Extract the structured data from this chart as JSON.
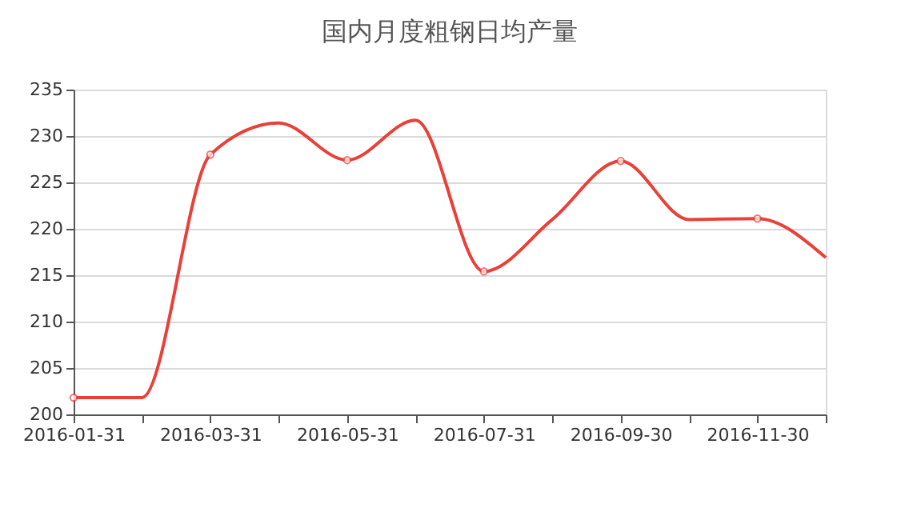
{
  "chart_data": {
    "type": "line",
    "title": "国内月度粗钢日均产量",
    "categories": [
      "2016-01-31",
      null,
      "2016-03-31",
      null,
      "2016-05-31",
      null,
      "2016-07-31",
      null,
      "2016-09-30",
      null,
      "2016-11-30",
      null
    ],
    "series": [
      {
        "color": "#e8413a",
        "values": [
          201.8,
          201.8,
          228.0,
          231.4,
          227.4,
          231.7,
          215.4,
          221.0,
          227.3,
          221.0,
          221.1,
          216.9
        ]
      }
    ],
    "ylim": [
      200,
      235
    ],
    "yticks": [
      200,
      205,
      210,
      215,
      220,
      225,
      230,
      235
    ],
    "grid": "y",
    "marker": "circle",
    "line_style": "solid"
  }
}
